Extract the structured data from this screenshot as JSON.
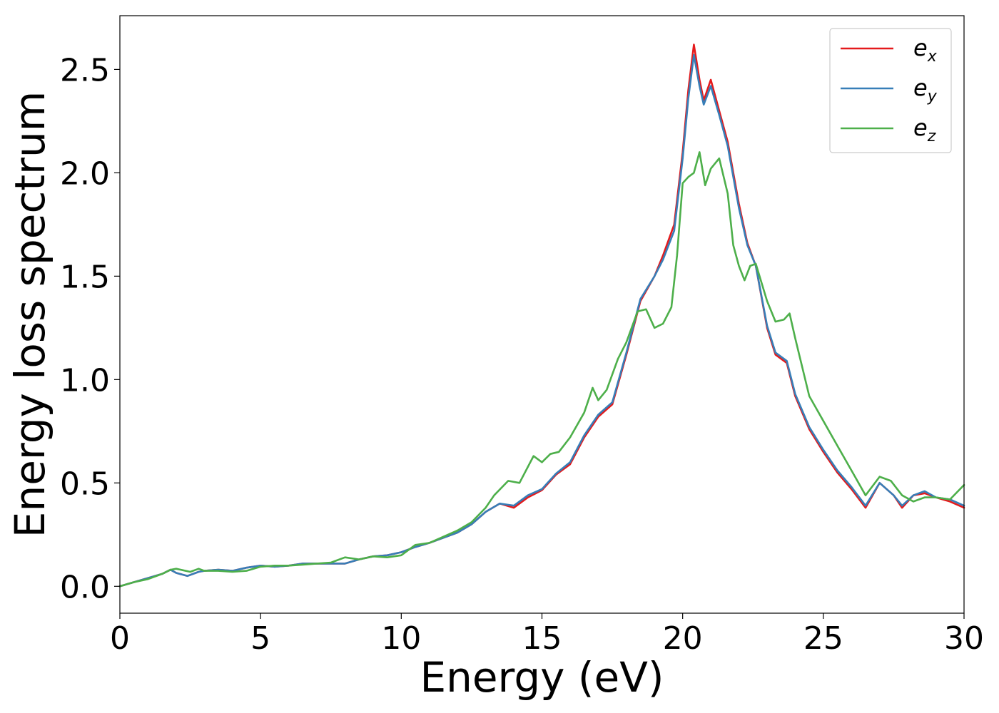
{
  "chart_data": {
    "type": "line",
    "title": "",
    "xlabel": "Energy (eV)",
    "ylabel": "Energy loss spectrum",
    "xlim": [
      0,
      30
    ],
    "ylim": [
      -0.13,
      2.76
    ],
    "xticks": [
      0,
      5,
      10,
      15,
      20,
      25,
      30
    ],
    "yticks": [
      0.0,
      0.5,
      1.0,
      1.5,
      2.0,
      2.5
    ],
    "xtick_labels": [
      "0",
      "5",
      "10",
      "15",
      "20",
      "25",
      "30"
    ],
    "ytick_labels": [
      "0.0",
      "0.5",
      "1.0",
      "1.5",
      "2.0",
      "2.5"
    ],
    "grid": false,
    "legend_position": "top-right",
    "series": [
      {
        "name": "e_x",
        "label_base": "e",
        "label_sub": "x",
        "color": "#e41a1c",
        "points": [
          [
            0,
            0.0
          ],
          [
            0.5,
            0.02
          ],
          [
            1,
            0.04
          ],
          [
            1.5,
            0.06
          ],
          [
            1.8,
            0.08
          ],
          [
            2,
            0.065
          ],
          [
            2.4,
            0.05
          ],
          [
            2.8,
            0.07
          ],
          [
            3,
            0.075
          ],
          [
            3.5,
            0.08
          ],
          [
            4,
            0.075
          ],
          [
            4.5,
            0.09
          ],
          [
            5,
            0.1
          ],
          [
            5.5,
            0.095
          ],
          [
            6,
            0.1
          ],
          [
            6.5,
            0.11
          ],
          [
            7,
            0.11
          ],
          [
            7.5,
            0.11
          ],
          [
            8,
            0.11
          ],
          [
            8.5,
            0.13
          ],
          [
            9,
            0.145
          ],
          [
            9.5,
            0.15
          ],
          [
            10,
            0.165
          ],
          [
            10.5,
            0.19
          ],
          [
            11,
            0.21
          ],
          [
            11.5,
            0.235
          ],
          [
            12,
            0.26
          ],
          [
            12.5,
            0.3
          ],
          [
            13,
            0.36
          ],
          [
            13.5,
            0.4
          ],
          [
            14,
            0.38
          ],
          [
            14.5,
            0.43
          ],
          [
            15,
            0.465
          ],
          [
            15.5,
            0.54
          ],
          [
            16,
            0.59
          ],
          [
            16.5,
            0.72
          ],
          [
            17,
            0.82
          ],
          [
            17.5,
            0.88
          ],
          [
            18,
            1.12
          ],
          [
            18.5,
            1.38
          ],
          [
            19,
            1.5
          ],
          [
            19.3,
            1.6
          ],
          [
            19.7,
            1.75
          ],
          [
            20,
            2.1
          ],
          [
            20.2,
            2.4
          ],
          [
            20.4,
            2.62
          ],
          [
            20.6,
            2.45
          ],
          [
            20.75,
            2.35
          ],
          [
            21,
            2.45
          ],
          [
            21.3,
            2.3
          ],
          [
            21.6,
            2.15
          ],
          [
            22,
            1.85
          ],
          [
            22.3,
            1.66
          ],
          [
            22.6,
            1.55
          ],
          [
            23,
            1.25
          ],
          [
            23.3,
            1.12
          ],
          [
            23.7,
            1.08
          ],
          [
            24,
            0.92
          ],
          [
            24.5,
            0.76
          ],
          [
            25,
            0.65
          ],
          [
            25.5,
            0.55
          ],
          [
            26,
            0.47
          ],
          [
            26.5,
            0.38
          ],
          [
            27,
            0.5
          ],
          [
            27.5,
            0.44
          ],
          [
            27.8,
            0.38
          ],
          [
            28.2,
            0.44
          ],
          [
            28.6,
            0.45
          ],
          [
            29,
            0.43
          ],
          [
            29.5,
            0.41
          ],
          [
            30,
            0.38
          ]
        ]
      },
      {
        "name": "e_y",
        "label_base": "e",
        "label_sub": "y",
        "color": "#377eb8",
        "points": [
          [
            0,
            0.0
          ],
          [
            0.5,
            0.02
          ],
          [
            1,
            0.04
          ],
          [
            1.5,
            0.06
          ],
          [
            1.8,
            0.08
          ],
          [
            2,
            0.065
          ],
          [
            2.4,
            0.05
          ],
          [
            2.8,
            0.07
          ],
          [
            3,
            0.075
          ],
          [
            3.5,
            0.08
          ],
          [
            4,
            0.075
          ],
          [
            4.5,
            0.09
          ],
          [
            5,
            0.1
          ],
          [
            5.5,
            0.095
          ],
          [
            6,
            0.1
          ],
          [
            6.5,
            0.11
          ],
          [
            7,
            0.11
          ],
          [
            7.5,
            0.11
          ],
          [
            8,
            0.11
          ],
          [
            8.5,
            0.13
          ],
          [
            9,
            0.145
          ],
          [
            9.5,
            0.15
          ],
          [
            10,
            0.165
          ],
          [
            10.5,
            0.19
          ],
          [
            11,
            0.21
          ],
          [
            11.5,
            0.235
          ],
          [
            12,
            0.26
          ],
          [
            12.5,
            0.3
          ],
          [
            13,
            0.36
          ],
          [
            13.5,
            0.4
          ],
          [
            14,
            0.39
          ],
          [
            14.5,
            0.44
          ],
          [
            15,
            0.47
          ],
          [
            15.5,
            0.545
          ],
          [
            16,
            0.6
          ],
          [
            16.5,
            0.73
          ],
          [
            17,
            0.83
          ],
          [
            17.5,
            0.89
          ],
          [
            18,
            1.13
          ],
          [
            18.5,
            1.39
          ],
          [
            19,
            1.5
          ],
          [
            19.3,
            1.58
          ],
          [
            19.7,
            1.72
          ],
          [
            20,
            2.07
          ],
          [
            20.2,
            2.36
          ],
          [
            20.4,
            2.57
          ],
          [
            20.6,
            2.42
          ],
          [
            20.75,
            2.33
          ],
          [
            21,
            2.42
          ],
          [
            21.3,
            2.28
          ],
          [
            21.6,
            2.13
          ],
          [
            22,
            1.83
          ],
          [
            22.3,
            1.65
          ],
          [
            22.6,
            1.55
          ],
          [
            23,
            1.26
          ],
          [
            23.3,
            1.13
          ],
          [
            23.7,
            1.09
          ],
          [
            24,
            0.93
          ],
          [
            24.5,
            0.77
          ],
          [
            25,
            0.66
          ],
          [
            25.5,
            0.56
          ],
          [
            26,
            0.48
          ],
          [
            26.5,
            0.39
          ],
          [
            27,
            0.5
          ],
          [
            27.5,
            0.44
          ],
          [
            27.8,
            0.39
          ],
          [
            28.2,
            0.44
          ],
          [
            28.6,
            0.46
          ],
          [
            29,
            0.43
          ],
          [
            29.5,
            0.42
          ],
          [
            30,
            0.39
          ]
        ]
      },
      {
        "name": "e_z",
        "label_base": "e",
        "label_sub": "z",
        "color": "#4daf4a",
        "points": [
          [
            0,
            0.0
          ],
          [
            0.5,
            0.02
          ],
          [
            1,
            0.035
          ],
          [
            1.5,
            0.06
          ],
          [
            1.8,
            0.08
          ],
          [
            2,
            0.085
          ],
          [
            2.5,
            0.07
          ],
          [
            2.8,
            0.085
          ],
          [
            3,
            0.075
          ],
          [
            3.5,
            0.075
          ],
          [
            4,
            0.07
          ],
          [
            4.5,
            0.075
          ],
          [
            5,
            0.095
          ],
          [
            5.5,
            0.1
          ],
          [
            6,
            0.1
          ],
          [
            6.5,
            0.105
          ],
          [
            7,
            0.11
          ],
          [
            7.5,
            0.115
          ],
          [
            8,
            0.14
          ],
          [
            8.5,
            0.13
          ],
          [
            9,
            0.145
          ],
          [
            9.5,
            0.14
          ],
          [
            10,
            0.15
          ],
          [
            10.5,
            0.2
          ],
          [
            11,
            0.21
          ],
          [
            11.5,
            0.24
          ],
          [
            12,
            0.27
          ],
          [
            12.5,
            0.31
          ],
          [
            13,
            0.38
          ],
          [
            13.3,
            0.44
          ],
          [
            13.8,
            0.51
          ],
          [
            14.2,
            0.5
          ],
          [
            14.7,
            0.63
          ],
          [
            15,
            0.6
          ],
          [
            15.3,
            0.64
          ],
          [
            15.6,
            0.65
          ],
          [
            16,
            0.72
          ],
          [
            16.5,
            0.84
          ],
          [
            16.8,
            0.96
          ],
          [
            17,
            0.9
          ],
          [
            17.3,
            0.95
          ],
          [
            17.7,
            1.1
          ],
          [
            18,
            1.18
          ],
          [
            18.4,
            1.33
          ],
          [
            18.7,
            1.34
          ],
          [
            19,
            1.25
          ],
          [
            19.3,
            1.27
          ],
          [
            19.6,
            1.35
          ],
          [
            19.8,
            1.6
          ],
          [
            20,
            1.95
          ],
          [
            20.2,
            1.98
          ],
          [
            20.4,
            2.0
          ],
          [
            20.6,
            2.1
          ],
          [
            20.8,
            1.94
          ],
          [
            21,
            2.02
          ],
          [
            21.3,
            2.07
          ],
          [
            21.6,
            1.9
          ],
          [
            21.8,
            1.65
          ],
          [
            22,
            1.55
          ],
          [
            22.2,
            1.48
          ],
          [
            22.4,
            1.55
          ],
          [
            22.6,
            1.56
          ],
          [
            23,
            1.38
          ],
          [
            23.3,
            1.28
          ],
          [
            23.6,
            1.29
          ],
          [
            23.8,
            1.32
          ],
          [
            24,
            1.2
          ],
          [
            24.5,
            0.92
          ],
          [
            25,
            0.8
          ],
          [
            25.5,
            0.68
          ],
          [
            26,
            0.56
          ],
          [
            26.5,
            0.44
          ],
          [
            27,
            0.53
          ],
          [
            27.4,
            0.51
          ],
          [
            27.8,
            0.44
          ],
          [
            28.2,
            0.41
          ],
          [
            28.6,
            0.43
          ],
          [
            29,
            0.43
          ],
          [
            29.5,
            0.42
          ],
          [
            30,
            0.49
          ]
        ]
      }
    ]
  }
}
